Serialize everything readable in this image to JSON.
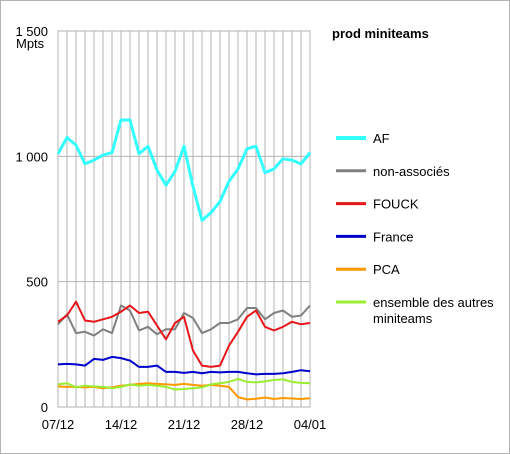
{
  "chart_data": {
    "type": "line",
    "title": "prod miniteams",
    "ylabel": "Mpts",
    "ylim": [
      0,
      1500
    ],
    "yticks": [
      {
        "value": 0,
        "label": "0"
      },
      {
        "value": 500,
        "label": "500"
      },
      {
        "value": 1000,
        "label": "1 000"
      },
      {
        "value": 1500,
        "label": "1 500"
      }
    ],
    "x_count": 29,
    "xticks": [
      {
        "index": 0,
        "label": "07/12"
      },
      {
        "index": 7,
        "label": "14/12"
      },
      {
        "index": 14,
        "label": "21/12"
      },
      {
        "index": 21,
        "label": "28/12"
      },
      {
        "index": 28,
        "label": "04/01"
      }
    ],
    "grid": true,
    "legend_position": "right",
    "series": [
      {
        "name": "AF",
        "color": "#33ffff",
        "width": 3,
        "values": [
          1010,
          1075,
          1045,
          970,
          985,
          1005,
          1015,
          1145,
          1145,
          1010,
          1040,
          945,
          885,
          940,
          1040,
          880,
          745,
          775,
          820,
          900,
          950,
          1030,
          1040,
          935,
          950,
          990,
          985,
          970,
          1015
        ]
      },
      {
        "name": "non-associés",
        "color": "#808080",
        "width": 2,
        "values": [
          330,
          370,
          295,
          300,
          285,
          310,
          295,
          405,
          385,
          305,
          320,
          290,
          310,
          310,
          375,
          355,
          295,
          310,
          335,
          335,
          350,
          395,
          395,
          350,
          375,
          385,
          360,
          365,
          405
        ]
      },
      {
        "name": "FOUCK",
        "color": "#e8161b",
        "width": 2,
        "values": [
          340,
          365,
          420,
          345,
          340,
          350,
          360,
          380,
          405,
          375,
          380,
          325,
          270,
          335,
          360,
          225,
          165,
          160,
          165,
          245,
          300,
          360,
          385,
          320,
          305,
          320,
          340,
          330,
          335
        ]
      },
      {
        "name": "France",
        "color": "#0000cc",
        "width": 2,
        "values": [
          170,
          172,
          170,
          165,
          192,
          188,
          200,
          195,
          185,
          160,
          160,
          165,
          140,
          140,
          136,
          140,
          135,
          140,
          138,
          140,
          140,
          135,
          130,
          132,
          132,
          135,
          140,
          147,
          143
        ]
      },
      {
        "name": "PCA",
        "color": "#ff9900",
        "width": 2,
        "values": [
          82,
          80,
          80,
          78,
          80,
          75,
          78,
          85,
          88,
          92,
          95,
          92,
          90,
          88,
          92,
          88,
          85,
          88,
          85,
          80,
          40,
          30,
          33,
          38,
          32,
          36,
          34,
          32,
          35
        ]
      },
      {
        "name": "ensemble des autres miniteams",
        "color": "#99ee33",
        "width": 2,
        "values": [
          90,
          95,
          78,
          85,
          82,
          80,
          75,
          80,
          90,
          85,
          88,
          85,
          80,
          70,
          72,
          75,
          78,
          90,
          95,
          100,
          112,
          100,
          98,
          102,
          108,
          110,
          100,
          96,
          95
        ]
      }
    ],
    "legend_labels": [
      [
        "AF"
      ],
      [
        "non-associés"
      ],
      [
        "FOUCK"
      ],
      [
        "France"
      ],
      [
        "PCA"
      ],
      [
        "ensemble des autres",
        "miniteams"
      ]
    ]
  }
}
